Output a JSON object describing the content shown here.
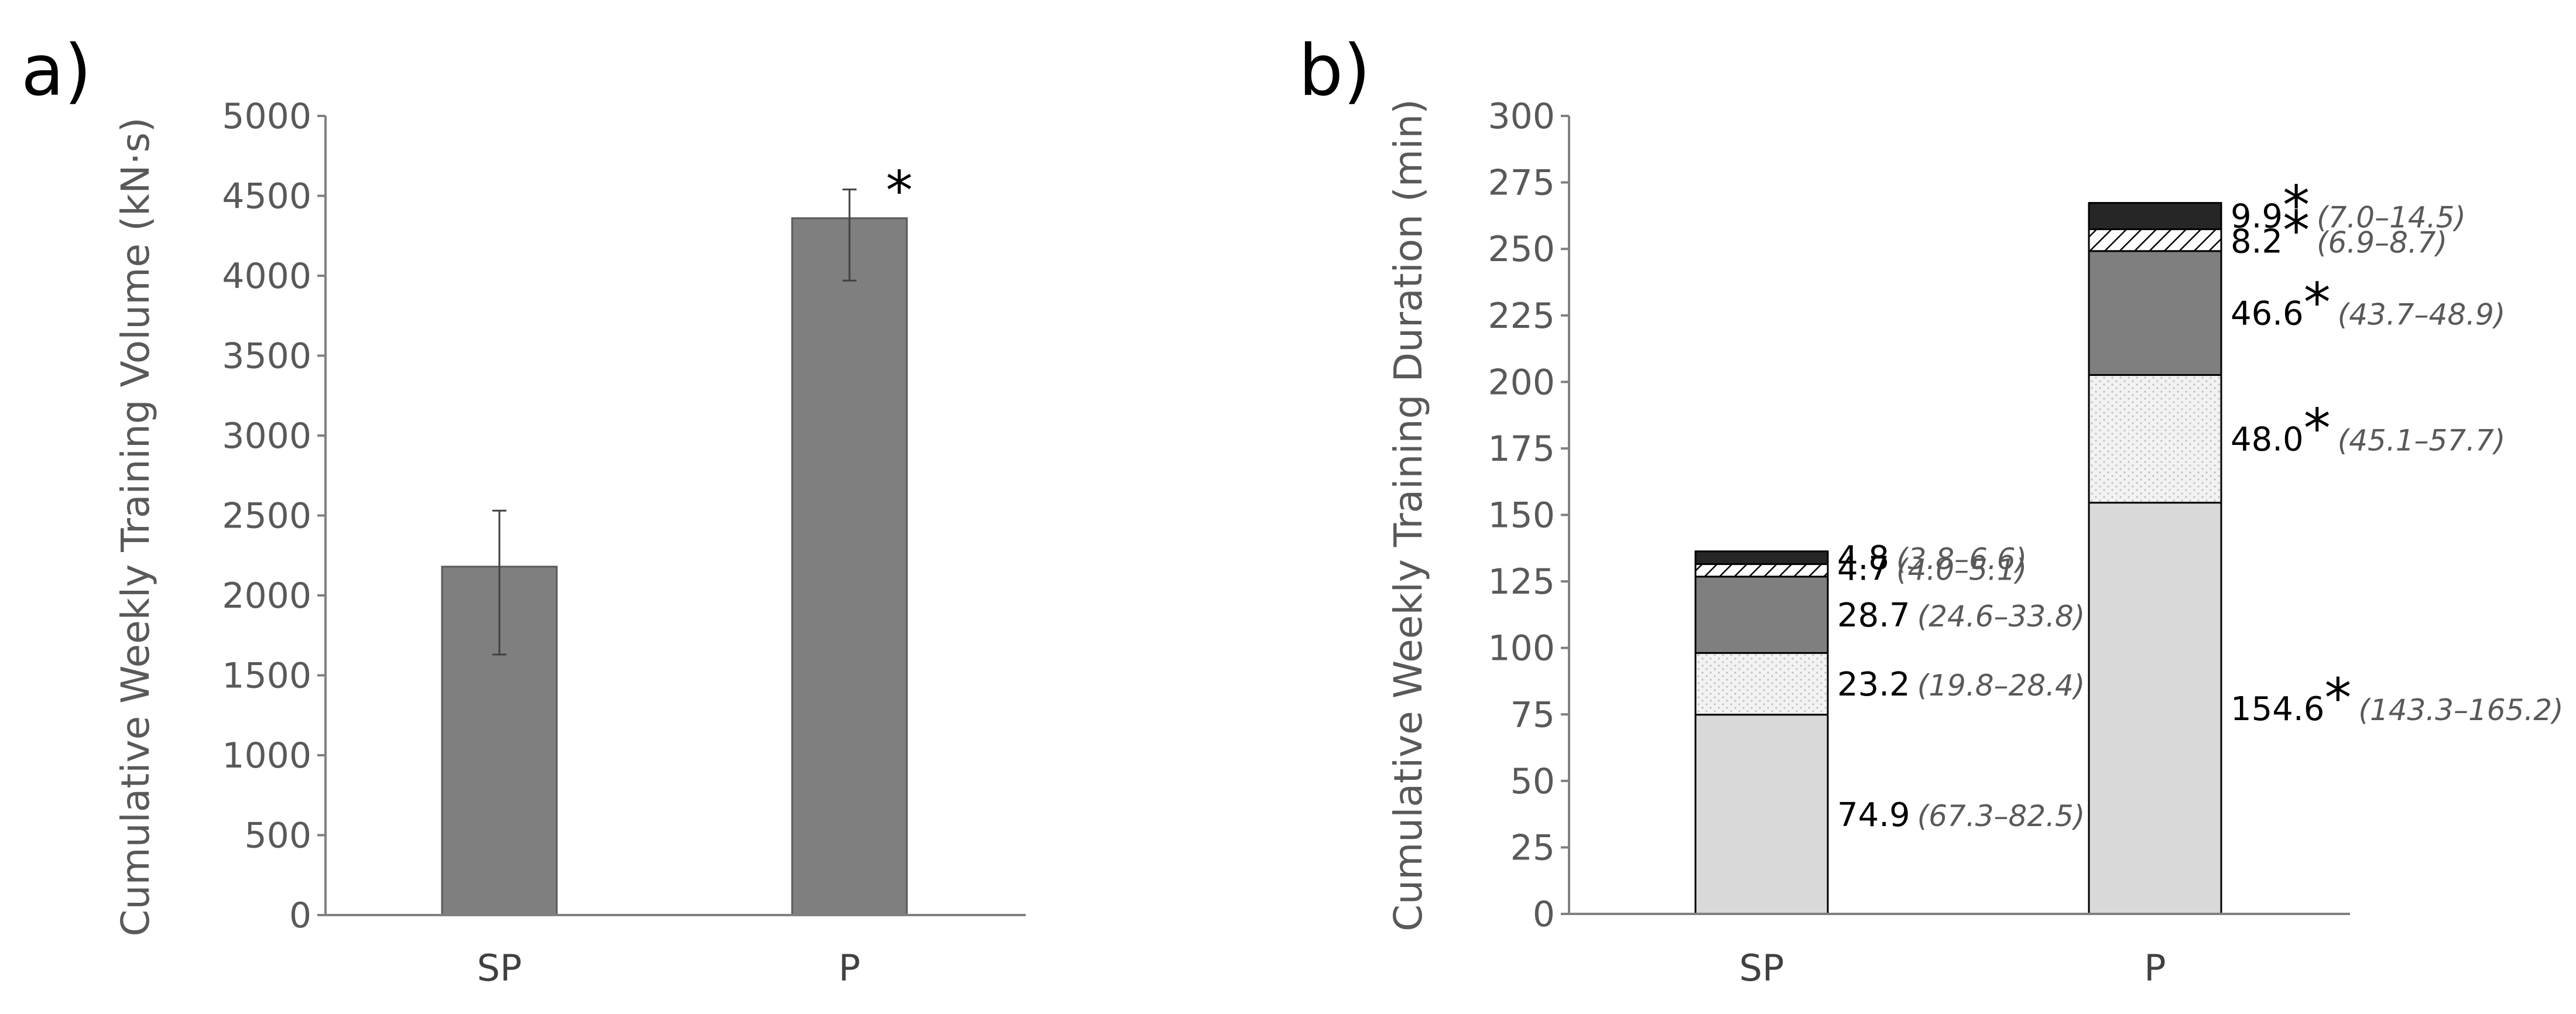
{
  "chart_data": [
    {
      "panel_label": "a)",
      "type": "bar",
      "categories": [
        "SP",
        "P"
      ],
      "values": [
        2180,
        4360
      ],
      "error_bars": [
        {
          "low": 1630,
          "high": 2530
        },
        {
          "low": 3970,
          "high": 4540
        }
      ],
      "significance": [
        "",
        "*"
      ],
      "ylabel": "Cumulative Weekly Training Volume (kN·s)",
      "xlabel": "",
      "ylim": [
        0,
        5000
      ],
      "yticks": [
        "0",
        "500",
        "1000",
        "1500",
        "2000",
        "2500",
        "3000",
        "3500",
        "4000",
        "4500",
        "5000"
      ],
      "grid": false,
      "colors": {
        "bar": "#7f7f7f",
        "axis": "#808080"
      }
    },
    {
      "panel_label": "b)",
      "type": "bar",
      "stacked": true,
      "categories": [
        "SP",
        "P"
      ],
      "ylabel": "Cumulative Weekly Training Duration (min)",
      "xlabel": "",
      "ylim": [
        0,
        300
      ],
      "yticks": [
        "0",
        "25",
        "50",
        "75",
        "100",
        "125",
        "150",
        "175",
        "200",
        "225",
        "250",
        "275",
        "300"
      ],
      "grid": false,
      "series": [
        {
          "fill": "#d9d9d9",
          "pattern": "solid",
          "values": [
            74.9,
            154.6
          ],
          "value_labels": [
            "74.9",
            "154.6"
          ],
          "intervals": [
            "(67.3–82.5)",
            "(143.3–165.2)"
          ],
          "significance": [
            "",
            "*"
          ]
        },
        {
          "fill": "#f2f2f2",
          "pattern": "dotted",
          "values": [
            23.2,
            48.0
          ],
          "value_labels": [
            "23.2",
            "48.0"
          ],
          "intervals": [
            "(19.8–28.4)",
            "(45.1–57.7)"
          ],
          "significance": [
            "",
            "*"
          ]
        },
        {
          "fill": "#7f7f7f",
          "pattern": "solid",
          "values": [
            28.7,
            46.6
          ],
          "value_labels": [
            "28.7",
            "46.6"
          ],
          "intervals": [
            "(24.6–33.8)",
            "(43.7–48.9)"
          ],
          "significance": [
            "",
            "*"
          ]
        },
        {
          "fill": "#ffffff",
          "pattern": "diagonal-hatch",
          "values": [
            4.7,
            8.2
          ],
          "value_labels": [
            "4.7",
            "8.2"
          ],
          "intervals": [
            "(4.0–5.1)",
            "(6.9–8.7)"
          ],
          "significance": [
            "",
            "*"
          ]
        },
        {
          "fill": "#262626",
          "pattern": "solid",
          "values": [
            4.8,
            9.9
          ],
          "value_labels": [
            "4.8",
            "9.9"
          ],
          "intervals": [
            "(3.8–6.6)",
            "(7.0–14.5)"
          ],
          "significance": [
            "",
            "*"
          ]
        }
      ],
      "colors": {
        "outline": "#000000",
        "axis": "#808080"
      }
    }
  ]
}
